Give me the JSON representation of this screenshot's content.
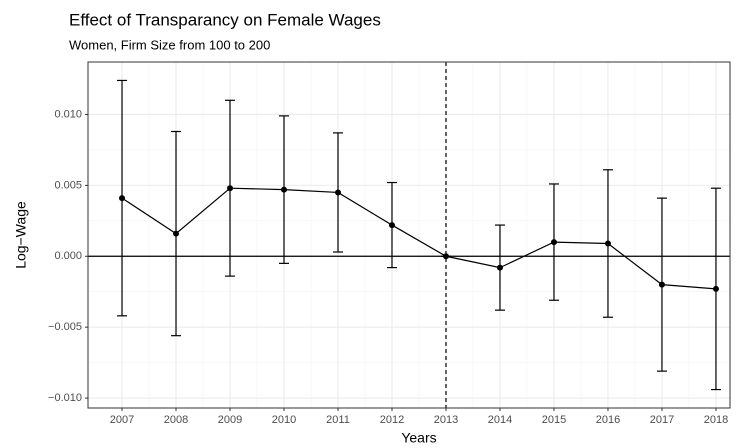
{
  "chart_data": {
    "type": "errorbar-line",
    "title": "Effect of Transparancy on Female Wages",
    "subtitle": "Women,  Firm Size from 100 to 200",
    "xlabel": "Years",
    "ylabel": "Log−Wage",
    "x": [
      2007,
      2008,
      2009,
      2010,
      2011,
      2012,
      2013,
      2014,
      2015,
      2016,
      2017,
      2018
    ],
    "values": [
      0.0041,
      0.0016,
      0.0048,
      0.0047,
      0.0045,
      0.0022,
      0,
      -0.0008,
      0.001,
      0.0009,
      -0.002,
      -0.0023
    ],
    "errors": [
      0.0083,
      0.0072,
      0.0062,
      0.0052,
      0.0042,
      0.003,
      0,
      0.003,
      0.0041,
      0.0052,
      0.0061,
      0.0071
    ],
    "color": "#000000",
    "xlim": [
      2006.37,
      2018.26
    ],
    "xticks": [
      2007,
      2008,
      2009,
      2010,
      2011,
      2012,
      2013,
      2014,
      2015,
      2016,
      2017,
      2018
    ],
    "ylim": [
      -0.0107,
      0.0137
    ],
    "yticks": [
      {
        "value": -0.01,
        "label": "−0.010"
      },
      {
        "value": -0.005,
        "label": "−0.005"
      },
      {
        "value": 0,
        "label": "0.000"
      },
      0.005,
      {
        "value": 0.01,
        "label": "0.010"
      }
    ],
    "vline": 2013,
    "hline": 0,
    "grid": true
  }
}
